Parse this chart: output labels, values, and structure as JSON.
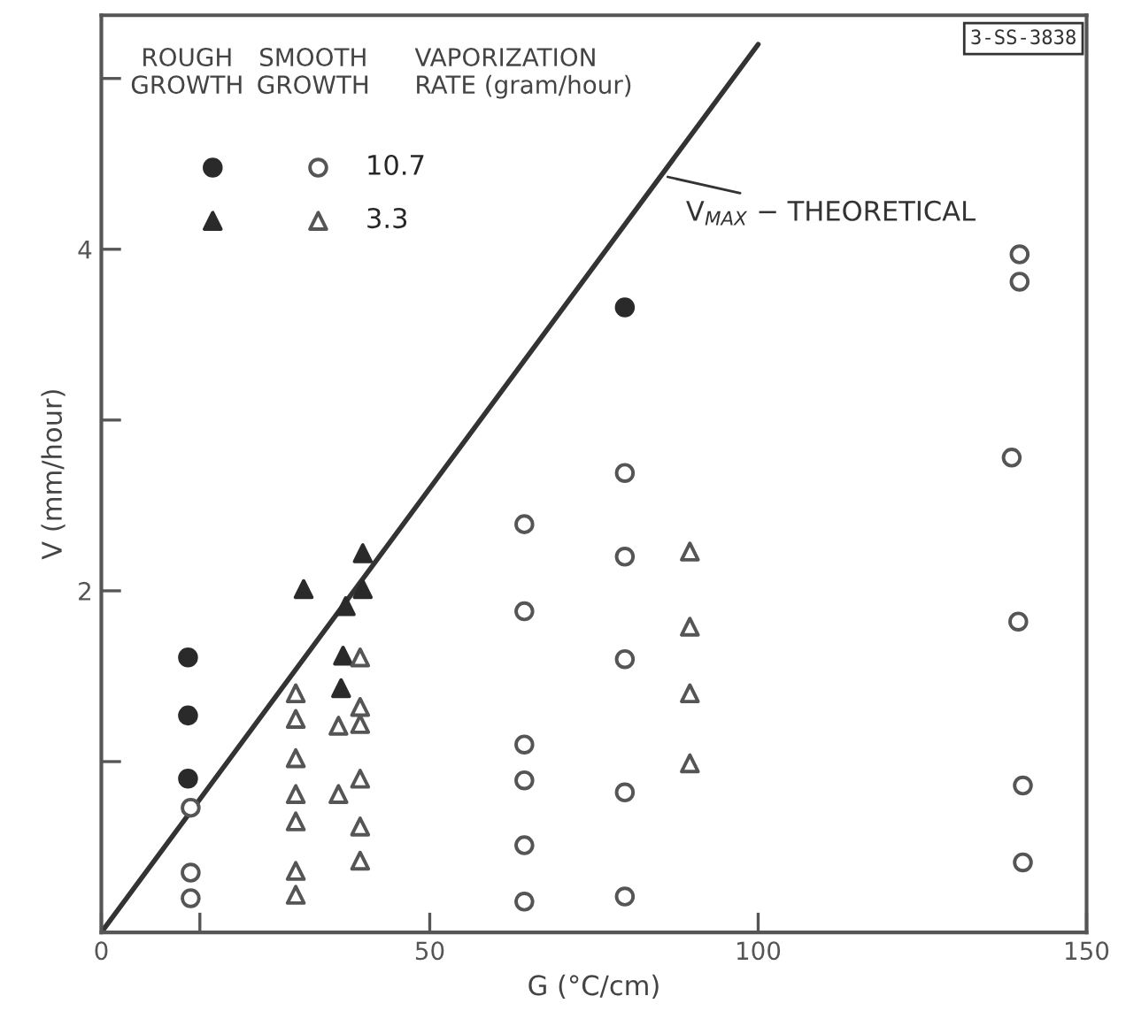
{
  "chart_data": {
    "type": "scatter",
    "xlabel": "G (°C/cm)",
    "ylabel": "V (mm/hour)",
    "xlim": [
      0,
      150
    ],
    "ylim": [
      0,
      5.37
    ],
    "xticks": [
      0,
      {
        "value": 15,
        "label": null
      },
      50,
      100,
      150
    ],
    "yticks": [
      {
        "value": 1,
        "label": null
      },
      2,
      {
        "value": 3,
        "label": null
      },
      4,
      {
        "value": 5,
        "label": null
      }
    ],
    "grid": false,
    "legend": "top left",
    "legend_title": "VAPORIZATION RATE (gram/hour)",
    "annotations": [
      "ROUGH\nGROWTH",
      "SMOOTH\nGROWTH",
      "3-SS-3838",
      {
        "text": "V$_{MAX}$ − THEORETICAL",
        "x": 85.5,
        "y": 4.43
      }
    ],
    "series": [
      {
        "marker": "circle",
        "color": "#2a2a2a",
        "x": [
          13.2,
          13.2,
          13.2,
          79.7
        ],
        "values": [
          1.61,
          1.27,
          0.9,
          3.66
        ]
      },
      {
        "name": "10.7",
        "marker": "circle",
        "color": "#555555",
        "x": [
          13.6,
          13.6,
          13.6,
          64.4,
          64.4,
          64.4,
          64.4,
          64.4,
          64.4,
          79.7,
          79.7,
          79.7,
          79.7,
          79.7,
          139.8,
          139.8,
          138.6,
          139.6,
          140.3,
          140.3
        ],
        "values": [
          0.73,
          0.35,
          0.2,
          2.39,
          1.88,
          1.1,
          0.89,
          0.51,
          0.18,
          2.69,
          2.2,
          1.6,
          0.82,
          0.21,
          3.97,
          3.81,
          2.78,
          1.82,
          0.86,
          0.41
        ]
      },
      {
        "marker": "triangle",
        "color": "#2a2a2a",
        "x": [
          30.8,
          37.2,
          39.8,
          39.8,
          36.8,
          36.5
        ],
        "values": [
          2.01,
          1.91,
          2.22,
          2.01,
          1.62,
          1.43
        ]
      },
      {
        "name": "3.3",
        "marker": "triangle",
        "color": "#555555",
        "x": [
          29.6,
          29.6,
          29.6,
          29.6,
          29.6,
          29.6,
          29.6,
          36.1,
          36.1,
          39.4,
          39.4,
          39.4,
          39.4,
          39.4,
          39.4,
          89.6,
          89.6,
          89.6,
          89.6
        ],
        "values": [
          1.4,
          1.25,
          1.02,
          0.81,
          0.65,
          0.36,
          0.22,
          1.21,
          0.81,
          1.61,
          1.32,
          1.22,
          0.9,
          0.62,
          0.42,
          2.23,
          1.79,
          1.4,
          0.99
        ]
      },
      {
        "type": "line",
        "color": "#333333",
        "x": [
          0,
          100
        ],
        "values": [
          0,
          5.2
        ]
      }
    ]
  }
}
